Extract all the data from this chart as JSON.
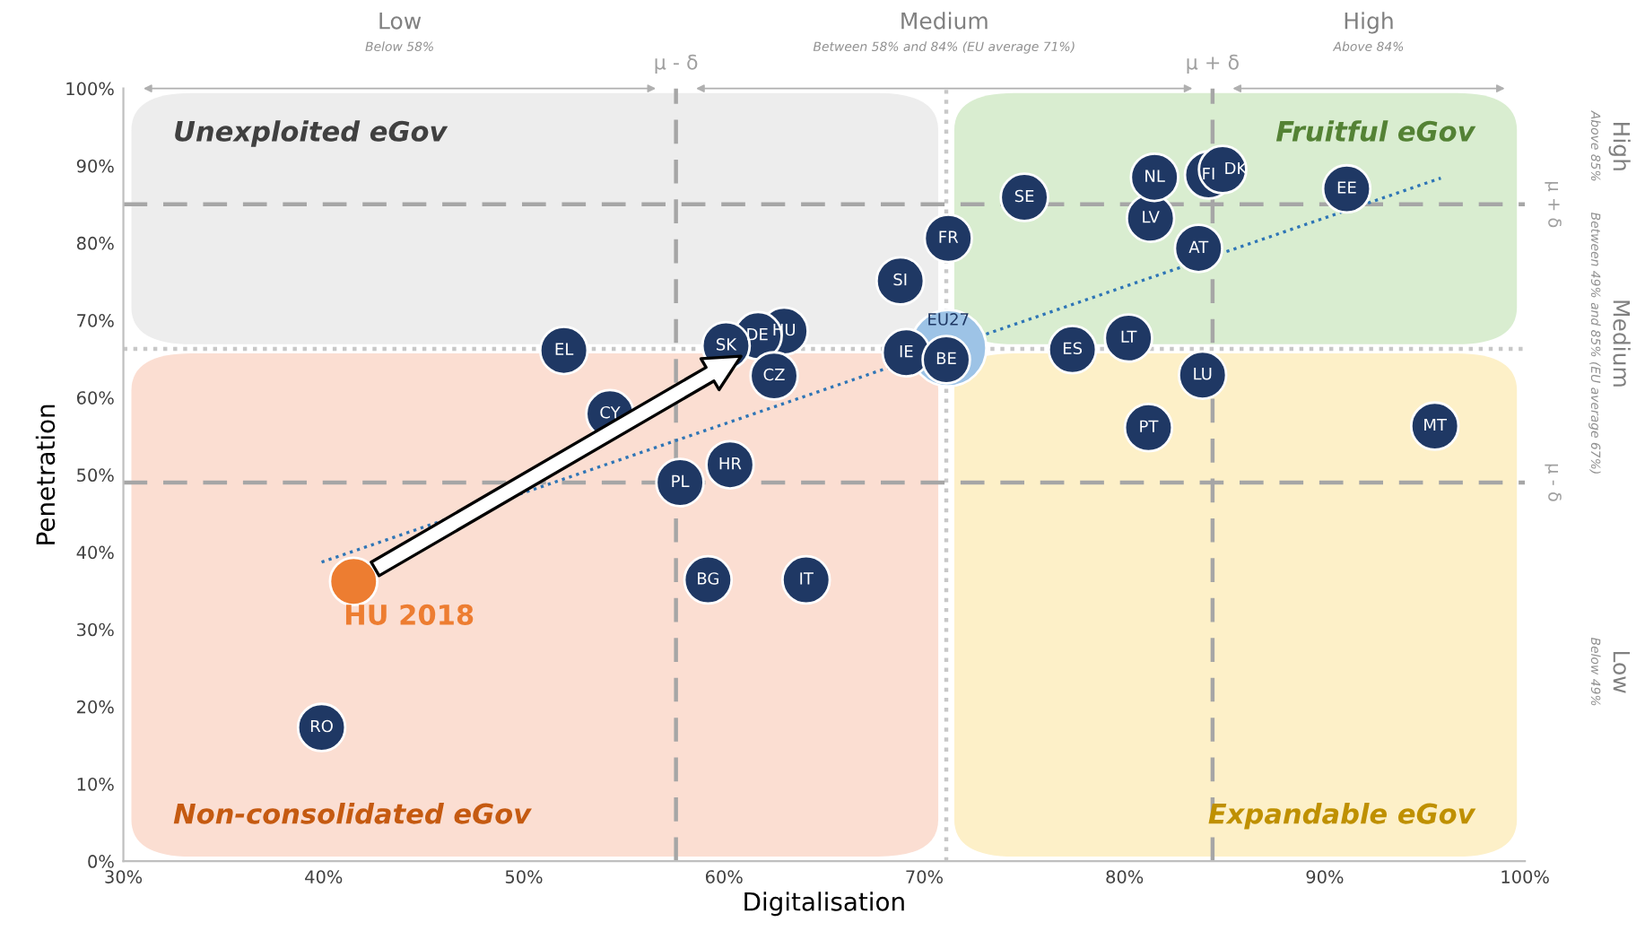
{
  "chart_data": {
    "type": "scatter",
    "xlabel": "Digitalisation",
    "ylabel": "Penetration",
    "xlim": [
      30,
      100
    ],
    "xticks": [
      {
        "value": 30,
        "label": "30%"
      },
      {
        "value": 40,
        "label": "40%"
      },
      {
        "value": 50,
        "label": "50%"
      },
      {
        "value": 60,
        "label": "60%"
      },
      {
        "value": 70,
        "label": "70%"
      },
      {
        "value": 80,
        "label": "80%"
      },
      {
        "value": 90,
        "label": "90%"
      },
      {
        "value": 100,
        "label": "100%"
      }
    ],
    "ylim": [
      0,
      100
    ],
    "yticks": [
      {
        "value": 0,
        "label": "0%"
      },
      {
        "value": 10,
        "label": "10%"
      },
      {
        "value": 20,
        "label": "20%"
      },
      {
        "value": 30,
        "label": "30%"
      },
      {
        "value": 40,
        "label": "40%"
      },
      {
        "value": 50,
        "label": "50%"
      },
      {
        "value": 60,
        "label": "60%"
      },
      {
        "value": 70,
        "label": "70%"
      },
      {
        "value": 80,
        "label": "80%"
      },
      {
        "value": 90,
        "label": "90%"
      },
      {
        "value": 100,
        "label": "100%"
      }
    ],
    "grid": false,
    "legend": false,
    "marker": "circle",
    "ref_lines": [
      {
        "axis": "x",
        "value": 57.6,
        "label": "µ - δ",
        "line_style": "dashed",
        "color": "#a6a6a6"
      },
      {
        "axis": "x",
        "value": 71.1,
        "label": null,
        "line_style": "dotted",
        "color": "#c8c8c8"
      },
      {
        "axis": "x",
        "value": 84.4,
        "label": "µ + δ",
        "line_style": "dashed",
        "color": "#a6a6a6"
      },
      {
        "axis": "y",
        "value": 49,
        "label": "µ - δ",
        "line_style": "dashed",
        "color": "#a6a6a6"
      },
      {
        "axis": "y",
        "value": 66.3,
        "label": null,
        "line_style": "dotted",
        "color": "#c8c8c8"
      },
      {
        "axis": "y",
        "value": 85,
        "label": "µ + δ",
        "line_style": "dashed",
        "color": "#a6a6a6"
      }
    ],
    "annotations": [
      "Low",
      "Below 58%",
      "Medium",
      "Between 58% and 84% (EU average 71%)",
      "High",
      "Above 84%",
      "High",
      "Above 85%",
      "Medium",
      "Between 49% and 85% (EU average 67%)",
      "Low",
      "Below 49%",
      "Unexploited eGov",
      "Fruitful eGov",
      "Non-consolidated eGov",
      "Expandable eGov"
    ],
    "series": [
      {
        "type": "line",
        "color": "#2e75b6",
        "line_style": "dotted",
        "marker": "none",
        "x": [
          39.9,
          95.8
        ],
        "values": [
          38.7,
          88.4
        ]
      },
      {
        "name": "HU",
        "color": "#1f3864",
        "x": [
          63.0
        ],
        "values": [
          68.6
        ]
      },
      {
        "name": "DE",
        "color": "#1f3864",
        "x": [
          61.7
        ],
        "values": [
          68.0
        ]
      },
      {
        "name": "SK",
        "color": "#1f3864",
        "x": [
          60.1
        ],
        "values": [
          66.7
        ]
      },
      {
        "name": "EL",
        "color": "#1f3864",
        "x": [
          52.0
        ],
        "values": [
          66.1
        ]
      },
      {
        "name": "CY",
        "color": "#1f3864",
        "x": [
          54.3
        ],
        "values": [
          57.9
        ]
      },
      {
        "name": "CZ",
        "color": "#1f3864",
        "x": [
          62.5
        ],
        "values": [
          62.8
        ]
      },
      {
        "name": "PL",
        "color": "#1f3864",
        "x": [
          57.8
        ],
        "values": [
          49.0
        ]
      },
      {
        "name": "HR",
        "color": "#1f3864",
        "x": [
          60.3
        ],
        "values": [
          51.3
        ]
      },
      {
        "name": "BG",
        "color": "#1f3864",
        "x": [
          59.2
        ],
        "values": [
          36.4
        ]
      },
      {
        "name": "IT",
        "color": "#1f3864",
        "x": [
          64.1
        ],
        "values": [
          36.4
        ]
      },
      {
        "name": "RO",
        "color": "#1f3864",
        "x": [
          39.9
        ],
        "values": [
          17.3
        ]
      },
      {
        "name": "SI",
        "color": "#1f3864",
        "x": [
          68.8
        ],
        "values": [
          75.1
        ]
      },
      {
        "name": "FR",
        "color": "#1f3864",
        "x": [
          71.2
        ],
        "values": [
          80.6
        ]
      },
      {
        "name": "SE",
        "color": "#1f3864",
        "x": [
          75.0
        ],
        "values": [
          85.9
        ]
      },
      {
        "name": "IE",
        "color": "#1f3864",
        "x": [
          69.1
        ],
        "values": [
          65.8
        ]
      },
      {
        "name": "BE",
        "color": "#1f3864",
        "x": [
          71.1
        ],
        "values": [
          64.9
        ]
      },
      {
        "name": "EU27",
        "color": "#9dc3e6",
        "x": [
          71.2
        ],
        "values": [
          66.4
        ]
      },
      {
        "name": "ES",
        "color": "#1f3864",
        "x": [
          77.4
        ],
        "values": [
          66.2
        ]
      },
      {
        "name": "LT",
        "color": "#1f3864",
        "x": [
          80.2
        ],
        "values": [
          67.7
        ]
      },
      {
        "name": "PT",
        "color": "#1f3864",
        "x": [
          81.2
        ],
        "values": [
          56.1
        ]
      },
      {
        "name": "LU",
        "color": "#1f3864",
        "x": [
          83.9
        ],
        "values": [
          62.9
        ]
      },
      {
        "name": "LV",
        "color": "#1f3864",
        "x": [
          81.3
        ],
        "values": [
          83.2
        ]
      },
      {
        "name": "AT",
        "color": "#1f3864",
        "x": [
          83.7
        ],
        "values": [
          79.3
        ]
      },
      {
        "name": "NL",
        "color": "#1f3864",
        "x": [
          81.5
        ],
        "values": [
          88.5
        ]
      },
      {
        "name": "FI",
        "color": "#1f3864",
        "x": [
          84.2
        ],
        "values": [
          88.8
        ]
      },
      {
        "name": "DK",
        "color": "#1f3864",
        "x": [
          84.9
        ],
        "values": [
          89.5
        ]
      },
      {
        "name": "EE",
        "color": "#1f3864",
        "x": [
          91.1
        ],
        "values": [
          87.0
        ]
      },
      {
        "name": "MT",
        "color": "#1f3864",
        "x": [
          95.5
        ],
        "values": [
          56.3
        ]
      },
      {
        "name": "HU 2018",
        "color": "#ed7d31",
        "x": [
          41.5
        ],
        "values": [
          36.2
        ]
      }
    ]
  }
}
